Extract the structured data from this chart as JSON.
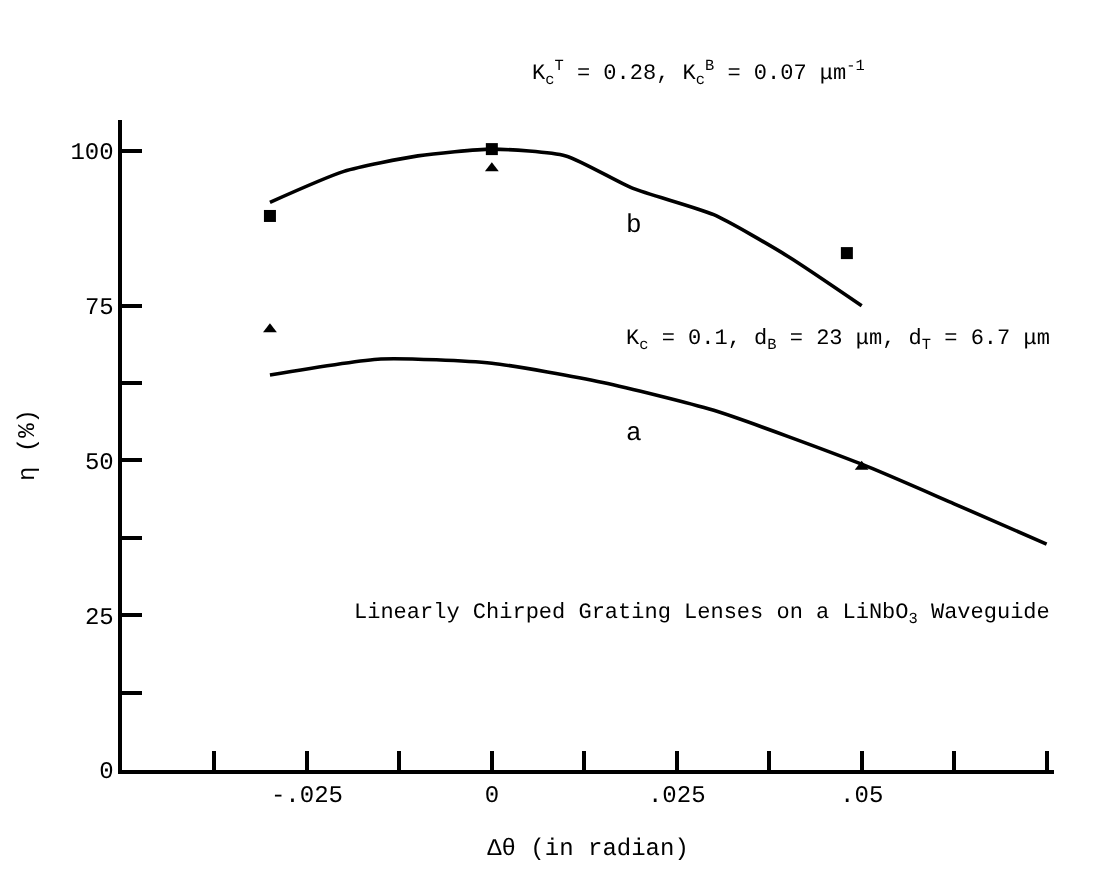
{
  "chart_data": {
    "type": "line",
    "xlabel": "Δθ (in radian)",
    "ylabel": "η (%)",
    "xlim": [
      -0.05,
      0.076
    ],
    "ylim": [
      0,
      105
    ],
    "xticks": [
      {
        "value": -0.0375,
        "label": null
      },
      {
        "value": -0.025,
        "label": "-.025"
      },
      {
        "value": -0.0125,
        "label": null
      },
      0,
      {
        "value": 0.0125,
        "label": null
      },
      {
        "value": 0.025,
        "label": ".025"
      },
      {
        "value": 0.0375,
        "label": null
      },
      {
        "value": 0.05,
        "label": ".05"
      },
      {
        "value": 0.0625,
        "label": null
      },
      {
        "value": 0.075,
        "label": null
      }
    ],
    "yticks": [
      0,
      {
        "value": 12.5,
        "label": null
      },
      25,
      {
        "value": 37.5,
        "label": null
      },
      50,
      {
        "value": 62.5,
        "label": null
      },
      75,
      100
    ],
    "series": [
      {
        "marker": "none",
        "color": "#000000",
        "x": [
          -0.03,
          -0.02,
          -0.01,
          0,
          0.01,
          0.019,
          0.03,
          0.04,
          0.05
        ],
        "values": [
          91.7,
          96.7,
          99.2,
          100.3,
          99.2,
          94,
          89.7,
          83,
          75
        ]
      },
      {
        "marker": "none",
        "color": "#000000",
        "x": [
          -0.03,
          -0.015,
          0,
          0.015,
          0.03,
          0.05,
          0.0625,
          0.075
        ],
        "values": [
          63.8,
          66.4,
          65.7,
          62.6,
          58.1,
          49.4,
          43,
          36.5
        ]
      },
      {
        "type": "scatter",
        "marker": "square",
        "color": "#000000",
        "x": [
          -0.03,
          0,
          0.048
        ],
        "values": [
          89.5,
          100.3,
          83.5
        ]
      },
      {
        "type": "scatter",
        "marker": "triangle",
        "color": "#000000",
        "x": [
          -0.03,
          0,
          0.05
        ],
        "values": [
          71.2,
          97.2,
          49
        ]
      }
    ],
    "annotations": [
      "b",
      "a",
      "K$_{c}$$^{T}$ = 0.28, K$_{c}$$^{B}$ = 0.07 μm$^{-1}$",
      "K$_{c}$ = 0.1, d$_{B}$ = 23 μm, d$_{T}$ = 6.7 μm",
      "Linearly Chirped Grating Lenses on a LiNbO$_{3}$ Waveguide"
    ]
  }
}
